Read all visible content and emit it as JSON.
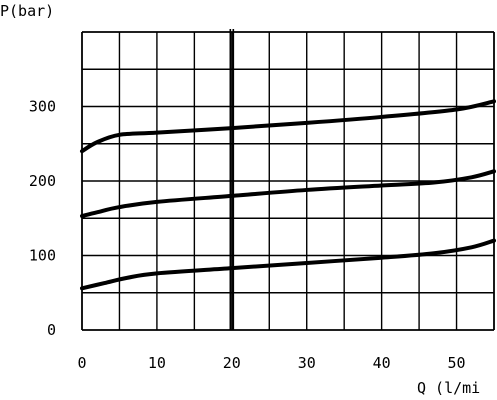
{
  "chart_data": {
    "type": "line",
    "title": "",
    "xlabel": "Q (l/mi",
    "ylabel": "P(bar)",
    "xlim": [
      0,
      55
    ],
    "ylim": [
      0,
      400
    ],
    "x_ticks": [
      0,
      10,
      20,
      30,
      40,
      50
    ],
    "y_ticks": [
      0,
      100,
      200,
      300
    ],
    "x_tick_labels": [
      "0",
      "10",
      "20",
      "30",
      "40",
      "50"
    ],
    "y_tick_labels": [
      "0",
      "100",
      "200",
      "300"
    ],
    "grid": true,
    "legend": "none",
    "reference_line_x": 20,
    "series": [
      {
        "x": [
          0,
          2,
          5,
          10,
          20,
          30,
          40,
          50,
          55
        ],
        "values": [
          240,
          252,
          262,
          265,
          271,
          278,
          286,
          296,
          307
        ]
      },
      {
        "x": [
          0,
          2,
          5,
          10,
          20,
          30,
          40,
          47,
          52,
          55
        ],
        "values": [
          153,
          158,
          165,
          172,
          180,
          188,
          194,
          198,
          205,
          213
        ]
      },
      {
        "x": [
          0,
          3,
          6,
          10,
          20,
          30,
          40,
          47,
          52,
          55
        ],
        "values": [
          56,
          63,
          70,
          76,
          83,
          90,
          97,
          103,
          111,
          120
        ]
      }
    ]
  }
}
